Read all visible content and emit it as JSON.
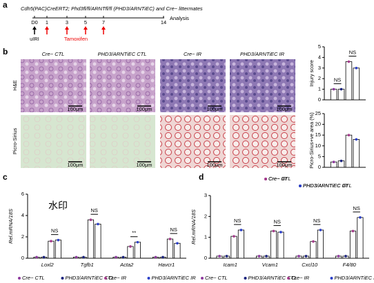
{
  "panel_labels": [
    "a",
    "b",
    "c",
    "d"
  ],
  "timeline": {
    "title": "Cdh5(PAC)CreERT2; Phd3fl/fl/ARNTfl/fl (PHD3/ARNTiEC) and Cre− littermates",
    "days": [
      "D0",
      "1",
      "3",
      "5",
      "7",
      "14"
    ],
    "end_label": "Analysis",
    "injury_label": "uIRI",
    "treatment_label": "Tamoxifen"
  },
  "histology": {
    "columns": [
      "Cre− CTL",
      "PHD3/ARNTiEC CTL",
      "Cre− IR",
      "PHD3/ARNTiEC IR"
    ],
    "rows": [
      "H&E",
      "Picro-Sirius"
    ],
    "scale_bar": "100μm"
  },
  "watermark": "水印",
  "chart_data": [
    {
      "type": "bar",
      "ylabel": "Injury score",
      "ylim": [
        0,
        5
      ],
      "yticks": [
        0,
        1,
        2,
        3,
        4,
        5
      ],
      "annotations": [
        "NS",
        "NS"
      ],
      "series": [
        {
          "name": "Cre− CTL",
          "color": "#8e3a9e",
          "values": [
            1
          ]
        },
        {
          "name": "PHD3/ARNTiEC CTL",
          "color": "#1a237e",
          "values": [
            1
          ]
        },
        {
          "name": "Cre− IR",
          "color": "#a53c8c",
          "values": [
            3.6
          ]
        },
        {
          "name": "PHD3/ARNTiEC IR",
          "color": "#2b3fc8",
          "values": [
            3.0
          ]
        }
      ]
    },
    {
      "type": "bar",
      "ylabel": "Picro-Sirius+ve area (%)",
      "ylim": [
        0,
        25
      ],
      "yticks": [
        0,
        5,
        10,
        15,
        20,
        25
      ],
      "annotations": [],
      "series": [
        {
          "name": "Cre− CTL",
          "color": "#8e3a9e",
          "values": [
            2.5
          ]
        },
        {
          "name": "PHD3/ARNTiEC CTL",
          "color": "#1a237e",
          "values": [
            3
          ]
        },
        {
          "name": "Cre− IR",
          "color": "#a53c8c",
          "values": [
            15
          ]
        },
        {
          "name": "PHD3/ARNTiEC IR",
          "color": "#2b3fc8",
          "values": [
            13
          ]
        }
      ]
    },
    {
      "type": "bar",
      "ylabel": "Rel.mRNA/18S",
      "ylim": [
        0,
        6
      ],
      "yticks": [
        0,
        2,
        4,
        6
      ],
      "categories": [
        "Loxl2",
        "Tgfb1",
        "Acta2",
        "Havcr1"
      ],
      "annotations": [
        "NS",
        "NS",
        "**",
        "NS"
      ],
      "legend": [
        "bottom"
      ],
      "series": [
        {
          "name": "Cre− CTL",
          "color": "#8e3a9e",
          "values": [
            0.1,
            0.1,
            0.1,
            0.1
          ]
        },
        {
          "name": "PHD3/ARNTiEC CTL",
          "color": "#1a237e",
          "values": [
            0.1,
            0.1,
            0.1,
            0.1
          ]
        },
        {
          "name": "Cre− IR",
          "color": "#a53c8c",
          "values": [
            1.6,
            3.6,
            1.1,
            1.8
          ]
        },
        {
          "name": "PHD3/ARNTiEC IR",
          "color": "#2b3fc8",
          "values": [
            1.7,
            3.2,
            1.5,
            1.4
          ]
        }
      ]
    },
    {
      "type": "bar",
      "ylabel": "Rel.mRNA/18S",
      "ylim": [
        0,
        3
      ],
      "yticks": [
        0,
        1,
        2,
        3
      ],
      "categories": [
        "Icam1",
        "Vcam1",
        "Cxcl10",
        "F4/80"
      ],
      "annotations": [
        "NS",
        "NS",
        "NS",
        "NS"
      ],
      "legend": [
        "top-right",
        "bottom"
      ],
      "series": [
        {
          "name": "Cre− CTL",
          "color": "#8e3a9e",
          "values": [
            0.1,
            0.1,
            0.1,
            0.1
          ]
        },
        {
          "name": "PHD3/ARNTiEC CTL",
          "color": "#1a237e",
          "values": [
            0.1,
            0.1,
            0.1,
            0.1
          ]
        },
        {
          "name": "Cre− IR",
          "color": "#a53c8c",
          "values": [
            1.05,
            1.3,
            0.8,
            1.3
          ]
        },
        {
          "name": "PHD3/ARNTiEC IR",
          "color": "#2b3fc8",
          "values": [
            1.35,
            1.25,
            1.35,
            1.95
          ]
        }
      ]
    }
  ]
}
